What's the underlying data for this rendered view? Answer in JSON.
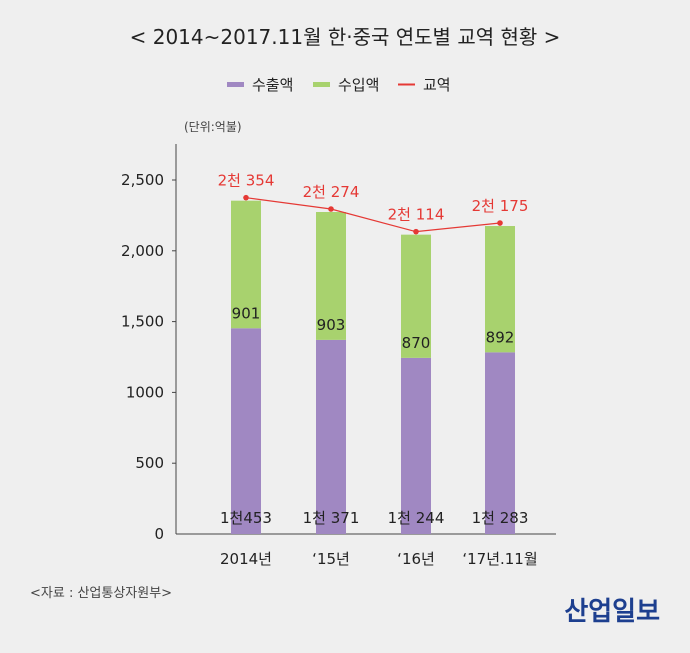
{
  "title": "< 2014~2017.11월 한·중국 연도별 교역 현황 >",
  "unit": "(단위:억불)",
  "source": "<자료 : 산업통상자원부>",
  "logo": "산업일보",
  "colors": {
    "export": "#a088c2",
    "import": "#a8d26e",
    "trade": "#e53935"
  },
  "chart_data": {
    "type": "bar",
    "stacked": true,
    "categories": [
      "2014년",
      "‘15년",
      "‘16년",
      "‘17년.11월"
    ],
    "series": [
      {
        "name": "수출액",
        "values": [
          1453,
          1371,
          1244,
          1283
        ],
        "labels": [
          "1천453",
          "1천 371",
          "1천 244",
          "1천 283"
        ]
      },
      {
        "name": "수입액",
        "values": [
          901,
          903,
          870,
          892
        ],
        "labels": [
          "901",
          "903",
          "870",
          "892"
        ]
      }
    ],
    "line": {
      "name": "교역",
      "values": [
        2354,
        2274,
        2114,
        2175
      ],
      "labels": [
        "2천 354",
        "2천 274",
        "2천 114",
        "2천 175"
      ]
    },
    "yticks": [
      0,
      500,
      1000,
      1500,
      2000,
      2500
    ],
    "ytick_labels": [
      "0",
      "500",
      "1000",
      "1,500",
      "2,000",
      "2,500"
    ],
    "ylim": [
      0,
      2500
    ],
    "legend_position": "top-center",
    "grid": false
  }
}
